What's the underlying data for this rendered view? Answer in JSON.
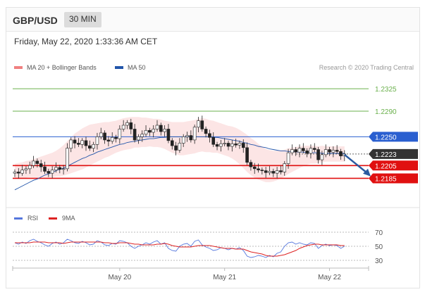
{
  "header": {
    "symbol": "GBP/USD",
    "interval": "30 MIN"
  },
  "timestamp": "Friday, May 22, 2020 1:33:36 AM CET",
  "credit": "Research © 2020 Trading Central",
  "colors": {
    "bollinger": "#f08080",
    "band_fill": "#fbdcdc",
    "ma50": "#2255aa",
    "green_level": "#6ab04c",
    "blue_level": "#2a5fd0",
    "red_level": "#e01010",
    "current_price": "#333333",
    "rsi": "#5577dd",
    "ma9": "#dd2222",
    "arrow": "#2b5aa0",
    "candle_up": "#ffffff",
    "candle_down": "#222222"
  },
  "chart_data": [
    {
      "type": "candlestick",
      "legend": [
        {
          "name": "MA 20 + Bollinger Bands",
          "color": "#f08080"
        },
        {
          "name": "MA 50",
          "color": "#2255aa"
        }
      ],
      "ylim": [
        1.2147,
        1.2345
      ],
      "levels": [
        {
          "value": 1.2325,
          "label": "1.2325",
          "kind": "resistance",
          "color": "#6ab04c"
        },
        {
          "value": 1.229,
          "label": "1.2290",
          "kind": "resistance",
          "color": "#6ab04c"
        },
        {
          "value": 1.225,
          "label": "1.2250",
          "kind": "pivot",
          "color": "#2a5fd0"
        },
        {
          "value": 1.2223,
          "label": "1.2223",
          "kind": "current",
          "color": "#333333"
        },
        {
          "value": 1.2205,
          "label": "1.2205",
          "kind": "support",
          "color": "#e01010"
        },
        {
          "value": 1.2185,
          "label": "1.2185",
          "kind": "support",
          "color": "#e01010"
        }
      ],
      "x_ticks": [
        {
          "index": 28,
          "label": "May 20"
        },
        {
          "index": 56,
          "label": "May 21"
        },
        {
          "index": 84,
          "label": "May 22"
        }
      ],
      "forecast_arrow": {
        "from_index": 88,
        "from_value": 1.2222,
        "to_index": 95,
        "to_value": 1.2188
      },
      "close": [
        1.2195,
        1.2193,
        1.2198,
        1.22,
        1.2205,
        1.2212,
        1.2208,
        1.2203,
        1.2196,
        1.2193,
        1.2198,
        1.2202,
        1.2199,
        1.22,
        1.2232,
        1.2245,
        1.224,
        1.2238,
        1.2244,
        1.2236,
        1.2232,
        1.2238,
        1.225,
        1.2256,
        1.2245,
        1.2243,
        1.2249,
        1.2247,
        1.2262,
        1.2268,
        1.2272,
        1.2262,
        1.2245,
        1.225,
        1.2254,
        1.226,
        1.2257,
        1.2262,
        1.2268,
        1.2258,
        1.2262,
        1.2244,
        1.2236,
        1.2229,
        1.224,
        1.225,
        1.2252,
        1.2245,
        1.2265,
        1.2275,
        1.2262,
        1.2255,
        1.2249,
        1.2238,
        1.2235,
        1.2239,
        1.224,
        1.2235,
        1.2239,
        1.2237,
        1.224,
        1.2233,
        1.221,
        1.2203,
        1.22,
        1.2198,
        1.2197,
        1.2194,
        1.2196,
        1.2193,
        1.2197,
        1.2195,
        1.2208,
        1.2225,
        1.223,
        1.2226,
        1.2232,
        1.2228,
        1.2224,
        1.2232,
        1.223,
        1.2214,
        1.2222,
        1.223,
        1.2226,
        1.2229,
        1.2227,
        1.222,
        1.2223
      ],
      "ma20": [
        1.2196,
        1.2197,
        1.2198,
        1.2199,
        1.22,
        1.2201,
        1.2202,
        1.2203,
        1.2204,
        1.2205,
        1.2206,
        1.2208,
        1.221,
        1.2213,
        1.2217,
        1.2221,
        1.2225,
        1.2228,
        1.2231,
        1.2234,
        1.2237,
        1.2239,
        1.2241,
        1.2243,
        1.2245,
        1.2246,
        1.2248,
        1.225,
        1.2252,
        1.2254,
        1.2255,
        1.2256,
        1.2257,
        1.2257,
        1.2257,
        1.2257,
        1.2257,
        1.2256,
        1.2256,
        1.2255,
        1.2253,
        1.2251,
        1.2249,
        1.2248,
        1.2247,
        1.2247,
        1.2248,
        1.2249,
        1.225,
        1.2252,
        1.2253,
        1.2252,
        1.2251,
        1.225,
        1.2249,
        1.2247,
        1.2245,
        1.2243,
        1.2241,
        1.2238,
        1.2234,
        1.2229,
        1.2224,
        1.2219,
        1.2215,
        1.2211,
        1.2208,
        1.2205,
        1.2204,
        1.2204,
        1.2205,
        1.2207,
        1.2209,
        1.2212,
        1.2214,
        1.2216,
        1.2218,
        1.222,
        1.2221,
        1.2222,
        1.2222,
        1.2222,
        1.2223,
        1.2223,
        1.2223,
        1.2223,
        1.2223,
        1.2223,
        1.2223
      ],
      "ma50": [
        1.2167,
        1.217,
        1.2173,
        1.2176,
        1.2179,
        1.2182,
        1.2184,
        1.2187,
        1.219,
        1.2192,
        1.2194,
        1.2197,
        1.2199,
        1.2201,
        1.2204,
        1.2207,
        1.221,
        1.2213,
        1.2216,
        1.2218,
        1.2221,
        1.2223,
        1.2226,
        1.2228,
        1.223,
        1.2232,
        1.2234,
        1.2236,
        1.2238,
        1.2239,
        1.2241,
        1.2242,
        1.2243,
        1.2244,
        1.2245,
        1.2246,
        1.2247,
        1.2247,
        1.2248,
        1.2249,
        1.2249,
        1.225,
        1.225,
        1.225,
        1.225,
        1.225,
        1.225,
        1.225,
        1.225,
        1.225,
        1.225,
        1.225,
        1.225,
        1.2249,
        1.2249,
        1.2248,
        1.2247,
        1.2246,
        1.2245,
        1.2244,
        1.2243,
        1.2241,
        1.224,
        1.2238,
        1.2237,
        1.2235,
        1.2234,
        1.2233,
        1.2231,
        1.223,
        1.2229,
        1.2228,
        1.2228,
        1.2227,
        1.2227,
        1.2226,
        1.2226,
        1.2226,
        1.2225,
        1.2225,
        1.2225,
        1.2225,
        1.2224,
        1.2224,
        1.2224,
        1.2224,
        1.2224,
        1.2224,
        1.2224
      ],
      "band_width": [
        0.0012,
        0.0012,
        0.0012,
        0.0013,
        0.0013,
        0.0014,
        0.0015,
        0.0016,
        0.0017,
        0.0018,
        0.0019,
        0.002,
        0.0022,
        0.0024,
        0.0026,
        0.0028,
        0.003,
        0.0031,
        0.0032,
        0.0032,
        0.0032,
        0.0031,
        0.003,
        0.0029,
        0.0028,
        0.0027,
        0.0026,
        0.0025,
        0.0025,
        0.0025,
        0.0025,
        0.0025,
        0.0024,
        0.0024,
        0.0023,
        0.0023,
        0.0022,
        0.0022,
        0.0022,
        0.0022,
        0.0022,
        0.0023,
        0.0024,
        0.0025,
        0.0026,
        0.0026,
        0.0026,
        0.0026,
        0.0026,
        0.0026,
        0.0026,
        0.0026,
        0.0025,
        0.0025,
        0.0024,
        0.0024,
        0.0024,
        0.0024,
        0.0025,
        0.0026,
        0.0027,
        0.0028,
        0.0029,
        0.0029,
        0.0029,
        0.0028,
        0.0027,
        0.0026,
        0.0025,
        0.0024,
        0.0023,
        0.0022,
        0.0021,
        0.002,
        0.0019,
        0.0018,
        0.0017,
        0.0016,
        0.0015,
        0.0014,
        0.0014,
        0.0013,
        0.0013,
        0.0012,
        0.0012,
        0.0012,
        0.0012,
        0.0012,
        0.0012
      ]
    },
    {
      "type": "line",
      "legend": [
        {
          "name": "RSI",
          "color": "#5577dd"
        },
        {
          "name": "9MA",
          "color": "#dd2222"
        }
      ],
      "ylim": [
        20,
        80
      ],
      "levels": [
        {
          "value": 70,
          "label": "70"
        },
        {
          "value": 50,
          "label": "50"
        },
        {
          "value": 30,
          "label": "30"
        }
      ],
      "rsi": [
        55,
        53,
        56,
        54,
        58,
        60,
        57,
        55,
        52,
        50,
        54,
        56,
        53,
        55,
        60,
        58,
        55,
        54,
        57,
        55,
        52,
        53,
        58,
        56,
        52,
        51,
        54,
        53,
        58,
        57,
        55,
        50,
        47,
        50,
        52,
        55,
        53,
        56,
        58,
        53,
        55,
        47,
        44,
        43,
        50,
        53,
        54,
        50,
        57,
        59,
        52,
        49,
        47,
        44,
        45,
        48,
        47,
        45,
        47,
        46,
        48,
        44,
        36,
        34,
        35,
        37,
        36,
        34,
        37,
        35,
        40,
        42,
        50,
        55,
        56,
        53,
        55,
        53,
        52,
        55,
        54,
        47,
        51,
        53,
        51,
        52,
        51,
        47,
        50
      ],
      "ma9": [
        55,
        55,
        55,
        55,
        55,
        56,
        56,
        56,
        56,
        55,
        55,
        55,
        55,
        54,
        55,
        56,
        56,
        56,
        56,
        56,
        56,
        56,
        56,
        56,
        55,
        55,
        54,
        54,
        55,
        55,
        55,
        54,
        53,
        53,
        52,
        52,
        52,
        52,
        53,
        53,
        54,
        53,
        51,
        50,
        49,
        49,
        49,
        49,
        50,
        51,
        51,
        51,
        51,
        50,
        49,
        48,
        47,
        47,
        47,
        46,
        46,
        46,
        44,
        42,
        41,
        40,
        39,
        37,
        36,
        36,
        36,
        37,
        38,
        40,
        42,
        44,
        47,
        49,
        51,
        52,
        53,
        53,
        52,
        52,
        52,
        52,
        52,
        51,
        51
      ]
    }
  ]
}
